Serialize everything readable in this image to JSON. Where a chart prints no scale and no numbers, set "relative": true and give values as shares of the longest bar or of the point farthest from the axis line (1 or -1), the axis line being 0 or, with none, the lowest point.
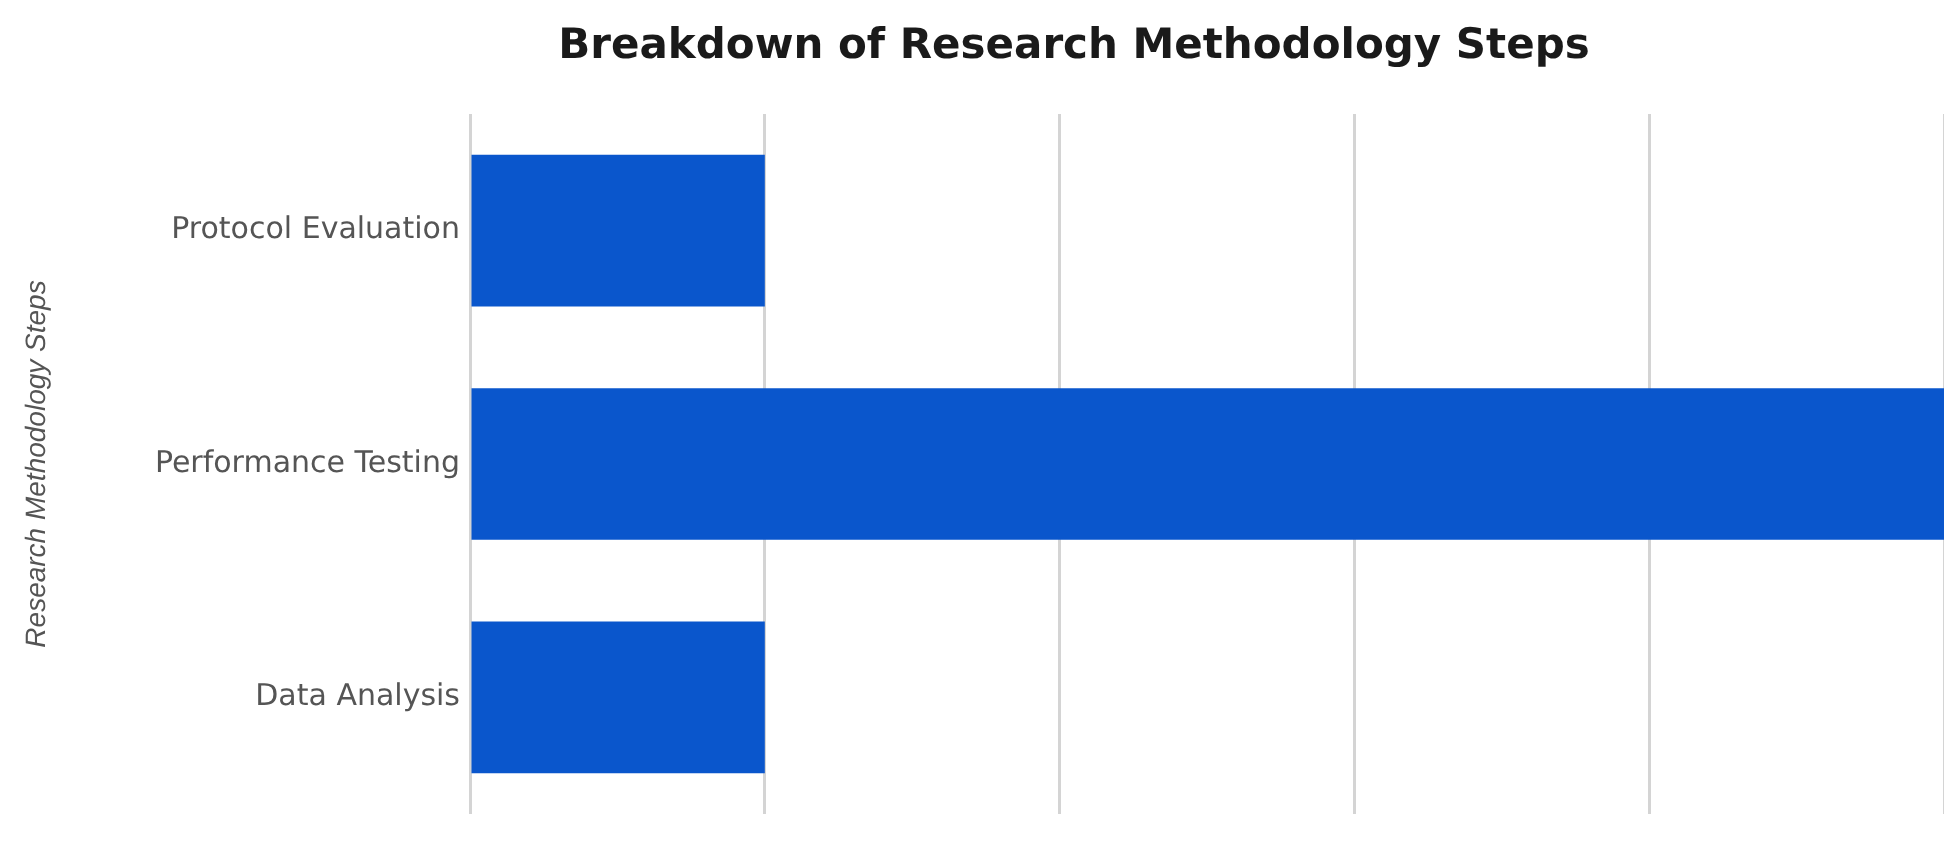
{
  "chart_data": {
    "type": "bar",
    "orientation": "horizontal",
    "title": "Breakdown of Research Methodology Steps",
    "ylabel": "Research Methodology Steps",
    "categories": [
      "Protocol Evaluation",
      "Performance Testing",
      "Data Analysis"
    ],
    "values": [
      0.2,
      1,
      0.2
    ],
    "color": "#0a56cc",
    "relative": true,
    "grid": "x",
    "tick_labels": "y",
    "legend": false
  }
}
